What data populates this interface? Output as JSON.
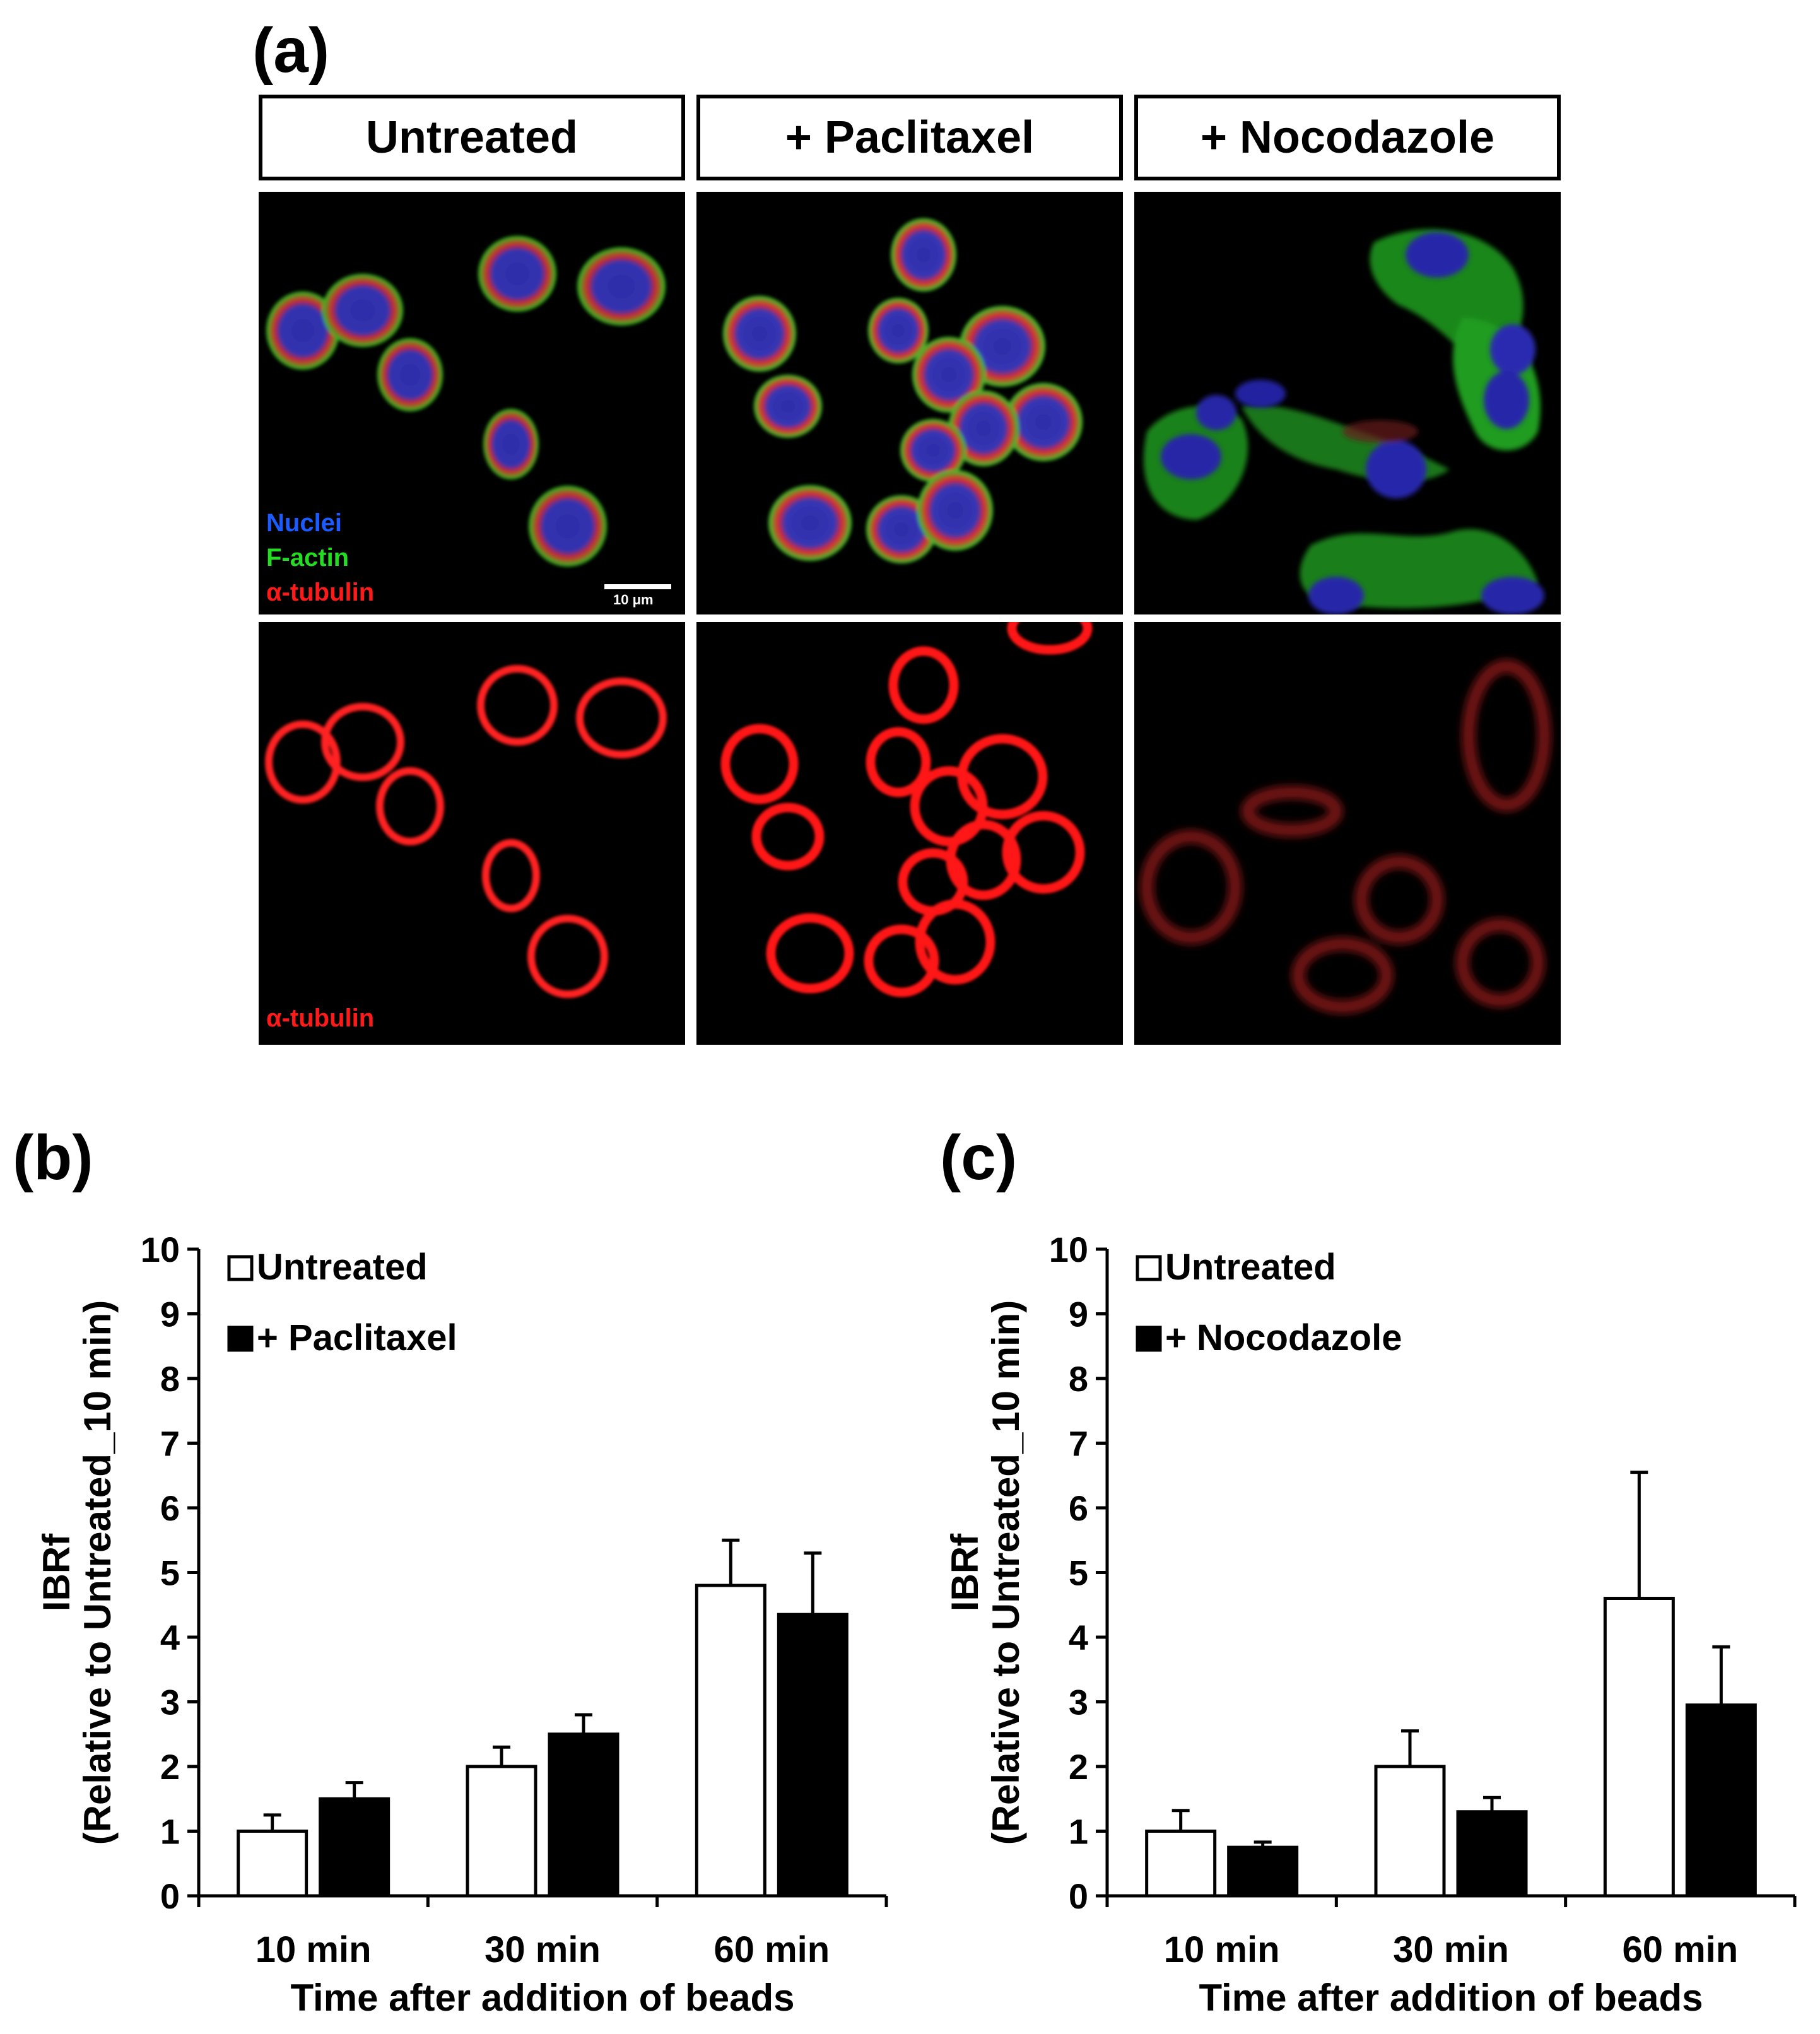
{
  "figure_a": {
    "letter": "(a)",
    "conditions": [
      "Untreated",
      "+ Paclitaxel",
      "+ Nocodazole"
    ],
    "merged_legend": {
      "nuclei": {
        "text": "Nuclei",
        "color": "#1a5cff"
      },
      "factin": {
        "text": "F-actin",
        "color": "#22dd22"
      },
      "tubulin": {
        "text": "α-tubulin",
        "color": "#ff1a1a"
      }
    },
    "tubulin_label": "α-tubulin",
    "scale_bar": "10 μm"
  },
  "chart_data": [
    {
      "letter": "(b)",
      "type": "bar",
      "categories": [
        "10 min",
        "30 min",
        "60 min"
      ],
      "series": [
        {
          "name": "Untreated",
          "values": [
            1.0,
            2.0,
            4.8
          ],
          "errors": [
            0.25,
            0.3,
            0.7
          ],
          "fill": "#ffffff"
        },
        {
          "name": "+ Paclitaxel",
          "values": [
            1.5,
            2.5,
            4.35
          ],
          "errors": [
            0.25,
            0.3,
            0.95
          ],
          "fill": "#000000"
        }
      ],
      "xlabel": "Time after addition of beads",
      "ylabel": "IBRf",
      "ylabel2": "(Relative to Untreated_10 min)",
      "ylim": [
        0,
        10
      ],
      "yticks": [
        "0",
        "1",
        "2",
        "3",
        "4",
        "5",
        "6",
        "7",
        "8",
        "9",
        "10"
      ],
      "legend_position": "top-left",
      "grid": false
    },
    {
      "letter": "(c)",
      "type": "bar",
      "categories": [
        "10 min",
        "30 min",
        "60 min"
      ],
      "series": [
        {
          "name": "Untreated",
          "values": [
            1.0,
            2.0,
            4.6
          ],
          "errors": [
            0.32,
            0.55,
            1.95
          ],
          "fill": "#ffffff"
        },
        {
          "name": "+ Nocodazole",
          "values": [
            0.75,
            1.3,
            2.95
          ],
          "errors": [
            0.08,
            0.22,
            0.9
          ],
          "fill": "#000000"
        }
      ],
      "xlabel": "Time after addition of beads",
      "ylabel": "IBRf",
      "ylabel2": "(Relative to Untreated_10 min)",
      "ylim": [
        0,
        10
      ],
      "yticks": [
        "0",
        "1",
        "2",
        "3",
        "4",
        "5",
        "6",
        "7",
        "8",
        "9",
        "10"
      ],
      "legend_position": "top-left",
      "grid": false
    }
  ]
}
